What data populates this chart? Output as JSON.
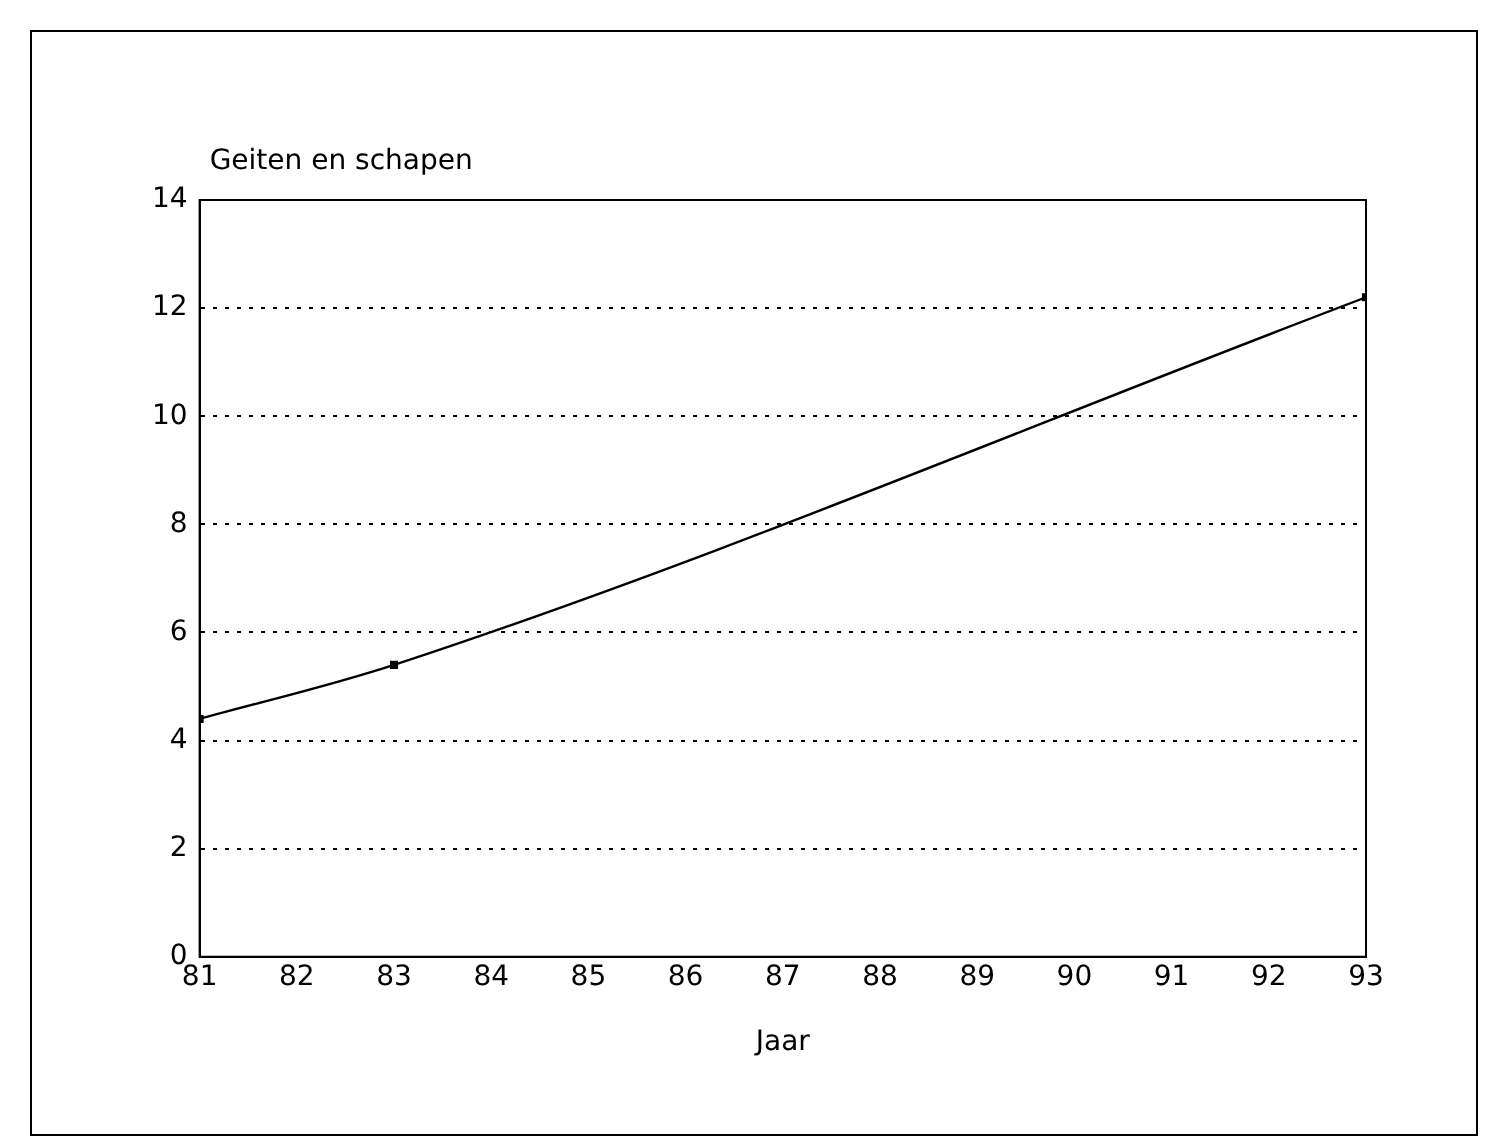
{
  "chart_data": {
    "type": "line",
    "ylabel": "Geiten en schapen",
    "xlabel": "Jaar",
    "x": [
      81,
      83,
      93
    ],
    "series": [
      {
        "color": "#000000",
        "values": [
          4.4,
          5.4,
          12.2
        ]
      }
    ],
    "xlim": [
      81,
      93
    ],
    "xticks": [
      81,
      82,
      83,
      84,
      85,
      86,
      87,
      88,
      89,
      90,
      91,
      92,
      93
    ],
    "ylim": [
      0,
      14
    ],
    "yticks": [
      0,
      2,
      4,
      6,
      8,
      10,
      12,
      14
    ],
    "grid": "y",
    "marker": "square",
    "line_style": "solid",
    "legend": false
  }
}
